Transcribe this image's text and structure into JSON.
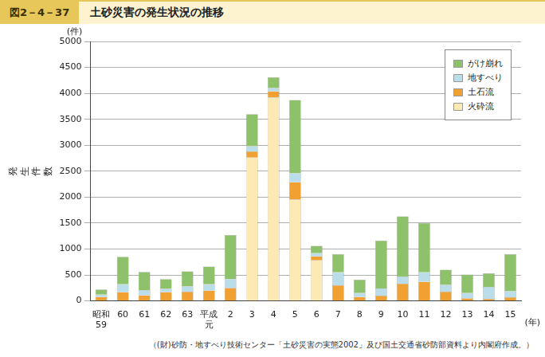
{
  "chart_data": {
    "type": "bar",
    "figure_number": "図2－4－37",
    "title": "土砂災害の発生状況の推移",
    "ylabel": "発生件数",
    "y_unit": "(件)",
    "x_unit": "(年)",
    "source": "（(財)砂防・地すべり技術センター「土砂災害の実態2002」及び国土交通省砂防部資料より内閣府作成。）",
    "categories": [
      "昭和59",
      "60",
      "61",
      "62",
      "63",
      "平成元",
      "2",
      "3",
      "4",
      "5",
      "6",
      "7",
      "8",
      "9",
      "10",
      "11",
      "12",
      "13",
      "14",
      "15"
    ],
    "series": [
      {
        "name": "がけ崩れ",
        "color": "#8dc26b",
        "values": [
          100,
          530,
          350,
          190,
          290,
          340,
          850,
          620,
          210,
          1410,
          140,
          350,
          260,
          920,
          1160,
          950,
          290,
          360,
          260,
          710
        ]
      },
      {
        "name": "地すべり",
        "color": "#b9dde9",
        "values": [
          40,
          150,
          100,
          60,
          100,
          120,
          170,
          100,
          60,
          170,
          60,
          250,
          70,
          140,
          140,
          180,
          130,
          100,
          230,
          120
        ]
      },
      {
        "name": "土石流",
        "color": "#f0a132",
        "values": [
          80,
          170,
          110,
          170,
          180,
          200,
          250,
          120,
          120,
          340,
          80,
          300,
          80,
          100,
          330,
          370,
          180,
          50,
          40,
          70
        ]
      },
      {
        "name": "火砕流",
        "color": "#fde9b3",
        "values": [
          0,
          0,
          0,
          0,
          0,
          0,
          0,
          2760,
          3920,
          1950,
          780,
          0,
          0,
          0,
          0,
          0,
          0,
          0,
          0,
          0
        ]
      }
    ],
    "stacked": true,
    "ylim": [
      0,
      5000
    ],
    "yticks": [
      0,
      500,
      1000,
      1500,
      2000,
      2500,
      3000,
      3500,
      4000,
      4500,
      5000
    ],
    "grid": true,
    "legend": "top-right"
  }
}
